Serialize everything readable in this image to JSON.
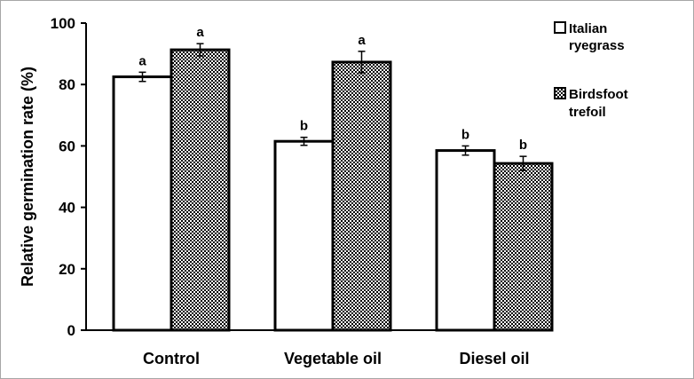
{
  "chart_data": {
    "type": "bar",
    "categories": [
      "Control",
      "Vegetable oil",
      "Diesel oil"
    ],
    "series": [
      {
        "name": "Italian ryegrass",
        "legend_lines": [
          "Italian",
          "ryegrass"
        ],
        "pattern": "solid-white",
        "values": [
          82.5,
          61.5,
          58.5
        ],
        "errors": [
          1.5,
          1.3,
          1.5
        ],
        "significance": [
          "a",
          "b",
          "b"
        ]
      },
      {
        "name": "Birdsfoot trefoil",
        "legend_lines": [
          "Birdsfoot",
          "trefoil"
        ],
        "pattern": "checkered",
        "values": [
          91.3,
          87.3,
          54.3
        ],
        "errors": [
          2.0,
          3.5,
          2.3
        ],
        "significance": [
          "a",
          "a",
          "b"
        ]
      }
    ],
    "title": "",
    "xlabel": "",
    "ylabel": "Relative germination rate (%)",
    "ylim": [
      0,
      100
    ],
    "yticks": [
      0,
      20,
      40,
      60,
      80,
      100
    ],
    "grid": false,
    "legend_position": "top-right",
    "colors": {
      "bar_fill": "#ffffff",
      "bar_stroke": "#000000",
      "pattern_dark": "#000000",
      "pattern_light": "#ffffff",
      "frame": "#a6a6a6"
    }
  }
}
